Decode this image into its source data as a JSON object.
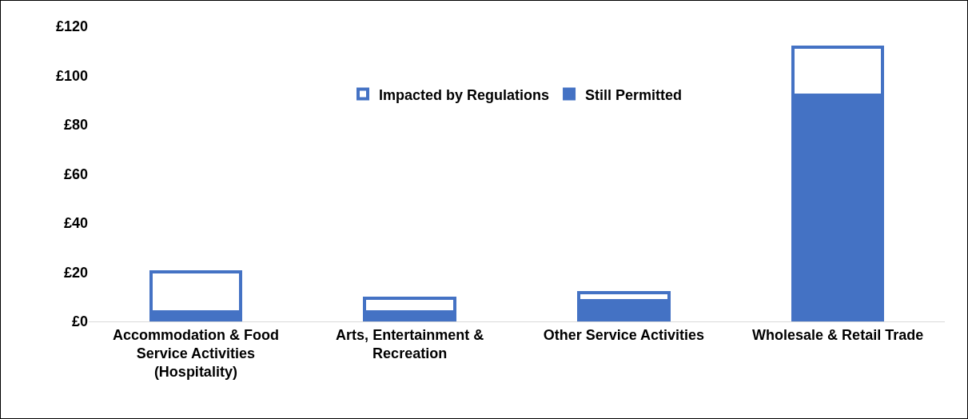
{
  "chart_data": {
    "type": "bar",
    "stacked": true,
    "categories": [
      "Accommodation & Food\nService Activities\n(Hospitality)",
      "Arts, Entertainment &\nRecreation",
      "Other Service Activities",
      "Wholesale & Retail Trade"
    ],
    "series": [
      {
        "name": "Still Permitted",
        "color": "#4472c4",
        "values": [
          4,
          3.8,
          8.3,
          92
        ]
      },
      {
        "name": "Impacted by Regulations",
        "color": "#ffffff",
        "values": [
          16.3,
          5.7,
          3.5,
          19.5
        ]
      }
    ],
    "ylim": [
      0,
      120
    ],
    "yticks": [
      {
        "value": 0,
        "label": "£0"
      },
      {
        "value": 20,
        "label": "£20"
      },
      {
        "value": 40,
        "label": "£40"
      },
      {
        "value": 60,
        "label": "£60"
      },
      {
        "value": 80,
        "label": "£80"
      },
      {
        "value": 100,
        "label": "£100"
      },
      {
        "value": 120,
        "label": "£120"
      }
    ],
    "grid": false,
    "legend": "top"
  }
}
